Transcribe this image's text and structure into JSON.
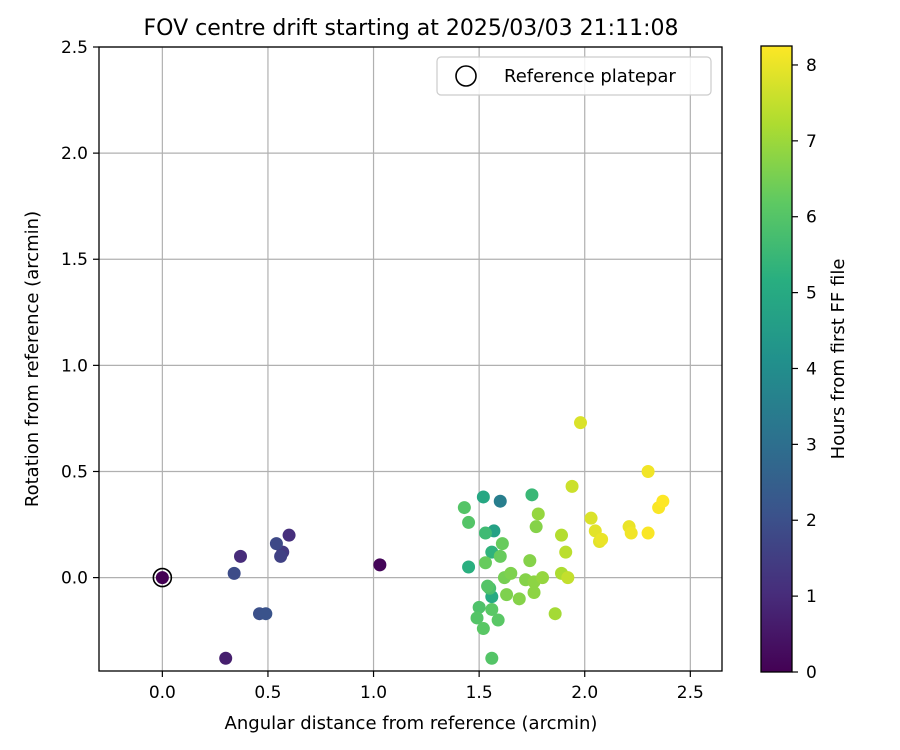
{
  "chart_data": {
    "type": "scatter",
    "title": "FOV centre drift starting at 2025/03/03 21:11:08",
    "xlabel": "Angular distance from reference (arcmin)",
    "ylabel": "Rotation from reference (arcmin)",
    "xlim": [
      -0.3,
      2.65
    ],
    "ylim": [
      -0.44,
      2.5
    ],
    "x_ticks": [
      0.0,
      0.5,
      1.0,
      1.5,
      2.0,
      2.5
    ],
    "y_ticks": [
      0.0,
      0.5,
      1.0,
      1.5,
      2.0,
      2.5
    ],
    "x_tick_labels": [
      "0.0",
      "0.5",
      "1.0",
      "1.5",
      "2.0",
      "2.5"
    ],
    "y_tick_labels": [
      "0.0",
      "0.5",
      "1.0",
      "1.5",
      "2.0",
      "2.5"
    ],
    "grid": true,
    "colormap": "viridis",
    "colorbar": {
      "label": "Hours from first FF file",
      "range": [
        0,
        8.25
      ],
      "ticks": [
        0,
        1,
        2,
        3,
        4,
        5,
        6,
        7,
        8
      ],
      "tick_labels": [
        "0",
        "1",
        "2",
        "3",
        "4",
        "5",
        "6",
        "7",
        "8"
      ]
    },
    "legend": {
      "placement": "top-right",
      "entries": [
        {
          "label": "Reference platepar",
          "marker": "hollow-circle"
        }
      ]
    },
    "reference_point": {
      "x": 0.0,
      "y": 0.0
    },
    "points": [
      {
        "x": 0.0,
        "y": 0.0,
        "c": 0.0
      },
      {
        "x": 1.03,
        "y": 0.06,
        "c": 0.1
      },
      {
        "x": 0.3,
        "y": -0.38,
        "c": 0.7
      },
      {
        "x": 0.37,
        "y": 0.1,
        "c": 1.0
      },
      {
        "x": 0.6,
        "y": 0.2,
        "c": 1.1
      },
      {
        "x": 0.57,
        "y": 0.12,
        "c": 1.4
      },
      {
        "x": 0.56,
        "y": 0.1,
        "c": 1.6
      },
      {
        "x": 0.54,
        "y": 0.16,
        "c": 1.8
      },
      {
        "x": 0.34,
        "y": 0.02,
        "c": 1.9
      },
      {
        "x": 0.46,
        "y": -0.17,
        "c": 2.0
      },
      {
        "x": 0.49,
        "y": -0.17,
        "c": 2.1
      },
      {
        "x": 1.6,
        "y": 0.36,
        "c": 3.5
      },
      {
        "x": 1.57,
        "y": 0.22,
        "c": 4.7
      },
      {
        "x": 1.52,
        "y": 0.38,
        "c": 4.9
      },
      {
        "x": 1.56,
        "y": -0.09,
        "c": 5.0
      },
      {
        "x": 1.45,
        "y": 0.05,
        "c": 5.2
      },
      {
        "x": 1.56,
        "y": 0.12,
        "c": 5.3
      },
      {
        "x": 1.75,
        "y": 0.39,
        "c": 5.5
      },
      {
        "x": 1.53,
        "y": 0.21,
        "c": 5.6
      },
      {
        "x": 1.55,
        "y": -0.05,
        "c": 5.8
      },
      {
        "x": 1.5,
        "y": -0.14,
        "c": 5.9
      },
      {
        "x": 1.54,
        "y": -0.04,
        "c": 6.0
      },
      {
        "x": 1.49,
        "y": -0.19,
        "c": 6.0
      },
      {
        "x": 1.52,
        "y": -0.24,
        "c": 6.1
      },
      {
        "x": 1.56,
        "y": -0.15,
        "c": 6.1
      },
      {
        "x": 1.59,
        "y": -0.2,
        "c": 6.1
      },
      {
        "x": 1.43,
        "y": 0.33,
        "c": 6.0
      },
      {
        "x": 1.45,
        "y": 0.26,
        "c": 6.0
      },
      {
        "x": 1.56,
        "y": -0.38,
        "c": 6.0
      },
      {
        "x": 1.61,
        "y": 0.16,
        "c": 6.3
      },
      {
        "x": 1.6,
        "y": 0.1,
        "c": 6.3
      },
      {
        "x": 1.53,
        "y": 0.07,
        "c": 6.3
      },
      {
        "x": 1.62,
        "y": 0.0,
        "c": 6.5
      },
      {
        "x": 1.65,
        "y": 0.02,
        "c": 6.6
      },
      {
        "x": 1.63,
        "y": -0.08,
        "c": 6.6
      },
      {
        "x": 1.69,
        "y": -0.1,
        "c": 6.7
      },
      {
        "x": 1.72,
        "y": -0.01,
        "c": 6.7
      },
      {
        "x": 1.74,
        "y": 0.08,
        "c": 6.7
      },
      {
        "x": 1.77,
        "y": 0.24,
        "c": 6.7
      },
      {
        "x": 1.76,
        "y": -0.07,
        "c": 6.8
      },
      {
        "x": 1.76,
        "y": -0.02,
        "c": 6.8
      },
      {
        "x": 1.78,
        "y": 0.3,
        "c": 6.9
      },
      {
        "x": 1.8,
        "y": 0.0,
        "c": 6.9
      },
      {
        "x": 1.86,
        "y": -0.17,
        "c": 7.1
      },
      {
        "x": 1.89,
        "y": 0.02,
        "c": 7.2
      },
      {
        "x": 1.89,
        "y": 0.2,
        "c": 7.3
      },
      {
        "x": 1.91,
        "y": 0.12,
        "c": 7.4
      },
      {
        "x": 1.92,
        "y": 0.0,
        "c": 7.5
      },
      {
        "x": 1.94,
        "y": 0.43,
        "c": 7.6
      },
      {
        "x": 1.98,
        "y": 0.73,
        "c": 7.8
      },
      {
        "x": 2.03,
        "y": 0.28,
        "c": 7.8
      },
      {
        "x": 2.05,
        "y": 0.22,
        "c": 7.9
      },
      {
        "x": 2.07,
        "y": 0.17,
        "c": 7.9
      },
      {
        "x": 2.08,
        "y": 0.18,
        "c": 8.0
      },
      {
        "x": 2.21,
        "y": 0.24,
        "c": 8.0
      },
      {
        "x": 2.22,
        "y": 0.21,
        "c": 8.1
      },
      {
        "x": 2.3,
        "y": 0.5,
        "c": 8.1
      },
      {
        "x": 2.3,
        "y": 0.21,
        "c": 8.2
      },
      {
        "x": 2.35,
        "y": 0.33,
        "c": 8.2
      },
      {
        "x": 2.37,
        "y": 0.36,
        "c": 8.25
      }
    ]
  }
}
